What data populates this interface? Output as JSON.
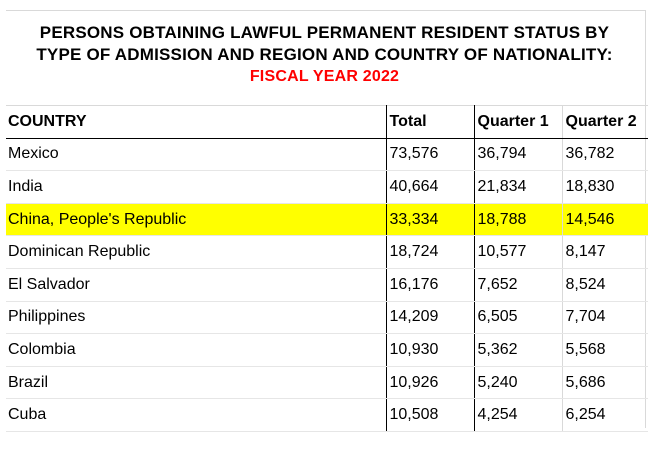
{
  "title": {
    "line1": "PERSONS OBTAINING LAWFUL PERMANENT RESIDENT STATUS BY",
    "line2": "TYPE OF ADMISSION AND REGION AND COUNTRY OF NATIONALITY:",
    "line3": "FISCAL YEAR 2022",
    "line3_color": "#ff0000"
  },
  "table": {
    "columns": [
      "COUNTRY",
      "Total",
      "Quarter 1",
      "Quarter 2"
    ],
    "highlight_color": "#ffff00",
    "rows": [
      {
        "country": "Mexico",
        "total": "73,576",
        "q1": "36,794",
        "q2": "36,782",
        "highlight": false
      },
      {
        "country": "India",
        "total": "40,664",
        "q1": "21,834",
        "q2": "18,830",
        "highlight": false
      },
      {
        "country": "China, People's Republic",
        "total": "33,334",
        "q1": "18,788",
        "q2": "14,546",
        "highlight": true
      },
      {
        "country": "Dominican Republic",
        "total": "18,724",
        "q1": "10,577",
        "q2": "8,147",
        "highlight": false
      },
      {
        "country": "El Salvador",
        "total": "16,176",
        "q1": "7,652",
        "q2": "8,524",
        "highlight": false
      },
      {
        "country": "Philippines",
        "total": "14,209",
        "q1": "6,505",
        "q2": "7,704",
        "highlight": false
      },
      {
        "country": "Colombia",
        "total": "10,930",
        "q1": "5,362",
        "q2": "5,568",
        "highlight": false
      },
      {
        "country": "Brazil",
        "total": "10,926",
        "q1": "5,240",
        "q2": "5,686",
        "highlight": false
      },
      {
        "country": "Cuba",
        "total": "10,508",
        "q1": "4,254",
        "q2": "6,254",
        "highlight": false
      }
    ]
  }
}
